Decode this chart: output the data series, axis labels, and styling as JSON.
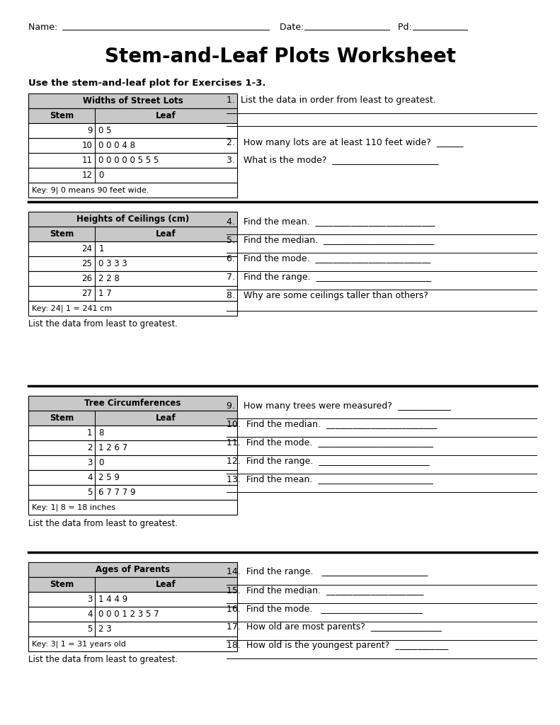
{
  "title": "Stem-and-Leaf Plots Worksheet",
  "section1_instruction": "Use the stem-and-leaf plot for Exercises 1-3.",
  "table1": {
    "title": "Widths of Street Lots",
    "headers": [
      "Stem",
      "Leaf"
    ],
    "rows": [
      [
        "9",
        "0 5"
      ],
      [
        "10",
        "0 0 0 4 8"
      ],
      [
        "11",
        "0 0 0 0 0 5 5 5"
      ],
      [
        "12",
        "0"
      ]
    ],
    "key": "Key: 9| 0 means 90 feet wide."
  },
  "questions1": [
    "1.  List the data in order from least to greatest.",
    "2.   How many lots are at least 110 feet wide?  ______",
    "3.   What is the mode?  ________________________"
  ],
  "table2": {
    "title": "Heights of Ceilings (cm)",
    "headers": [
      "Stem",
      "Leaf"
    ],
    "rows": [
      [
        "24",
        "1"
      ],
      [
        "25",
        "0 3 3 3"
      ],
      [
        "26",
        "2 2 8"
      ],
      [
        "27",
        "1 7"
      ]
    ],
    "key": "Key: 24| 1 = 241 cm",
    "sub": "List the data from least to greatest."
  },
  "questions2": [
    "4.   Find the mean.  ___________________________",
    "5.   Find the median.  _________________________",
    "6.   Find the mode.  __________________________",
    "7.   Find the range.  __________________________",
    "8.   Why are some ceilings taller than others?"
  ],
  "table3": {
    "title": "Tree Circumferences",
    "headers": [
      "Stem",
      "Leaf"
    ],
    "rows": [
      [
        "1",
        "8"
      ],
      [
        "2",
        "1 2 6 7"
      ],
      [
        "3",
        "0"
      ],
      [
        "4",
        "2 5 9"
      ],
      [
        "5",
        "6 7 7 7 9"
      ]
    ],
    "key": "Key: 1| 8 = 18 inches",
    "sub": "List the data from least to greatest."
  },
  "questions3": [
    "9.   How many trees were measured?  ____________",
    "10.  Find the median.  _________________________",
    "11.  Find the mode.  __________________________",
    "12.  Find the range.  _________________________",
    "13.  Find the mean.  __________________________"
  ],
  "table4": {
    "title": "Ages of Parents",
    "headers": [
      "Stem",
      "Leaf"
    ],
    "rows": [
      [
        "3",
        "1 4 4 9"
      ],
      [
        "4",
        "0 0 0 1 2 3 5 7"
      ],
      [
        "5",
        "2 3"
      ]
    ],
    "key": "Key: 3| 1 = 31 years old",
    "sub": "List the data from least to greatest."
  },
  "questions4": [
    "14.  Find the range.   ________________________",
    "15.  Find the median.  ______________________",
    "16.  Find the mode.   _______________________",
    "17.  How old are most parents?  ________________",
    "18.  How old is the youngest parent?  ____________"
  ],
  "bg_color": "#ffffff",
  "text_color": "#000000",
  "header_bg": "#c8c8c8"
}
